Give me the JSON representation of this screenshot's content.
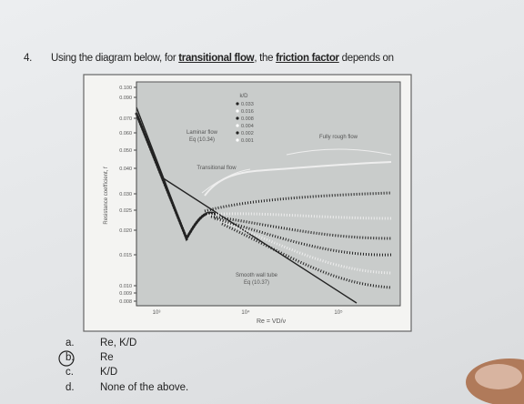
{
  "question": {
    "number": "4.",
    "parts": [
      "Using the diagram below, for ",
      "transitional flow",
      ", the ",
      "friction factor",
      " depends on"
    ]
  },
  "figure": {
    "y_axis_label": "Resistance coefficient, f",
    "y_ticks": [
      "0.100",
      "0.090",
      "0.070",
      "0.060",
      "0.050",
      "0.040",
      "0.030",
      "0.025",
      "0.020",
      "0.015",
      "0.010",
      "0.009",
      "0.008"
    ],
    "x_ticks": [
      "10³",
      "10⁴",
      "10⁵"
    ],
    "x_axis_label": "Re = VD/ν",
    "annotations": [
      "Laminar flow",
      "Eq (10.34)",
      "Transitional flow",
      "Fully rough flow",
      "Smooth wall tube",
      "Eq (10.37)"
    ],
    "legend": {
      "title": "k/D",
      "items": [
        "0.033",
        "0.016",
        "0.008",
        "0.004",
        "0.002",
        "0.001"
      ]
    }
  },
  "options": [
    {
      "letter": "a.",
      "text": "Re, K/D"
    },
    {
      "letter": "b.",
      "text": "Re"
    },
    {
      "letter": "c.",
      "text": "K/D"
    },
    {
      "letter": "d.",
      "text": "None of the above."
    }
  ]
}
